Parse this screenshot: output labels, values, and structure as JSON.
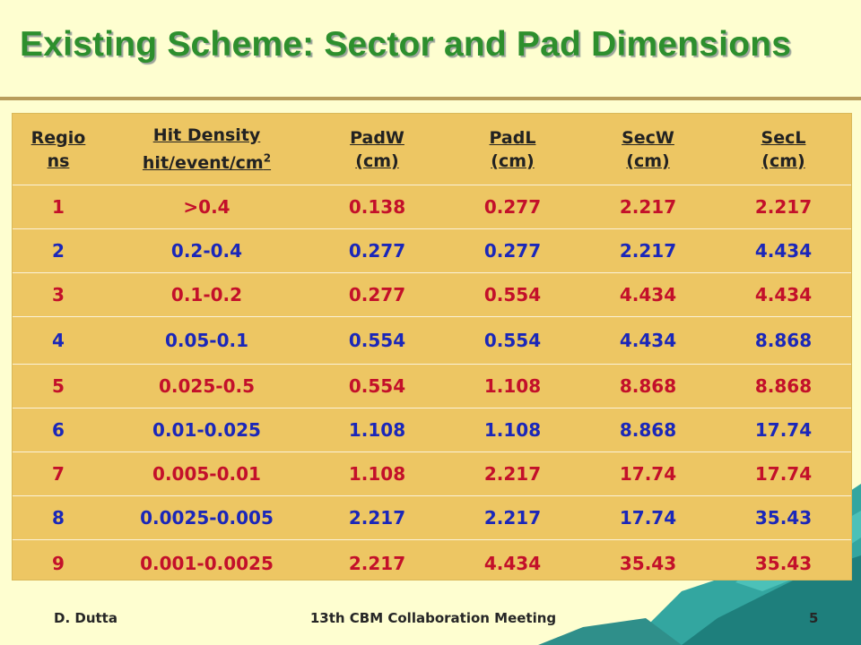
{
  "title": "Existing Scheme: Sector and Pad Dimensions",
  "table": {
    "headers": [
      [
        "Regio",
        "ns"
      ],
      [
        "Hit Density",
        "hit/event/cm",
        "2"
      ],
      [
        "PadW",
        "(cm)"
      ],
      [
        "PadL",
        "(cm)"
      ],
      [
        "SecW",
        "(cm)"
      ],
      [
        "SecL",
        "(cm)"
      ]
    ],
    "rows": [
      [
        "1",
        ">0.4",
        "0.138",
        "0.277",
        "2.217",
        "2.217"
      ],
      [
        "2",
        "0.2-0.4",
        "0.277",
        "0.277",
        "2.217",
        "4.434"
      ],
      [
        "3",
        "0.1-0.2",
        "0.277",
        "0.554",
        "4.434",
        "4.434"
      ],
      [
        "4",
        "0.05-0.1",
        "0.554",
        "0.554",
        "4.434",
        "8.868"
      ],
      [
        "5",
        "0.025-0.5",
        "0.554",
        "1.108",
        "8.868",
        "8.868"
      ],
      [
        "6",
        "0.01-0.025",
        "1.108",
        "1.108",
        "8.868",
        "17.74"
      ],
      [
        "7",
        "0.005-0.01",
        "1.108",
        "2.217",
        "17.74",
        "17.74"
      ],
      [
        "8",
        "0.0025-0.005",
        "2.217",
        "2.217",
        "17.74",
        "35.43"
      ],
      [
        "9",
        "0.001-0.0025",
        "2.217",
        "4.434",
        "35.43",
        "35.43"
      ]
    ]
  },
  "footer": {
    "author": "D. Dutta",
    "meeting": "13th CBM Collaboration Meeting",
    "page": "5"
  },
  "colors": {
    "background": "#fefed0",
    "title": "#2d8f2d",
    "table_bg": "#edc663",
    "odd_row_text": "#c3102a",
    "even_row_text": "#1b27b9"
  }
}
